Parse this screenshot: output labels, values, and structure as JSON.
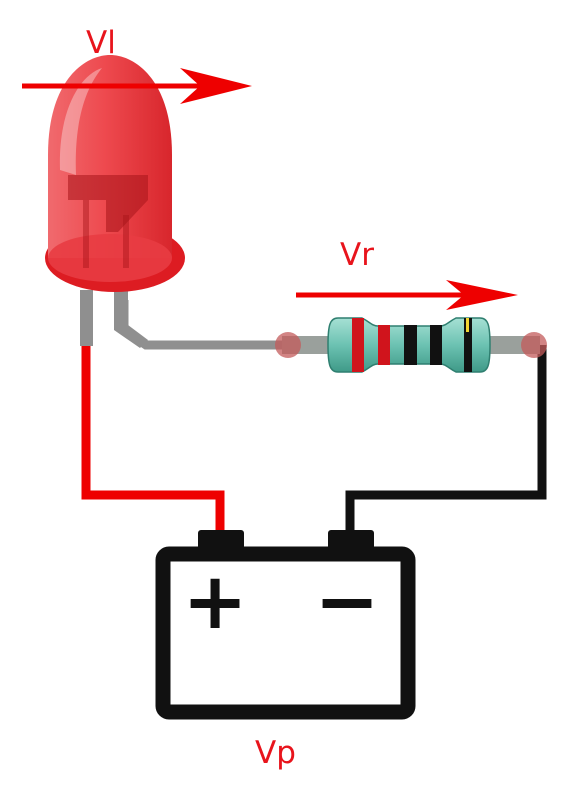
{
  "labels": {
    "led_voltage": "Vl",
    "resistor_voltage": "Vr",
    "battery_voltage": "Vp"
  },
  "battery": {
    "positive_symbol": "+",
    "negative_symbol": "−"
  },
  "colors": {
    "label_red": "#e8141c",
    "arrow_red": "#ee0000",
    "wire_positive": "#ee0000",
    "wire_negative": "#111111",
    "wire_led_lead": "#8f8f8f",
    "led_body": "#e8363c",
    "resistor_body": "#6cc2b2",
    "battery_outline": "#111111"
  }
}
